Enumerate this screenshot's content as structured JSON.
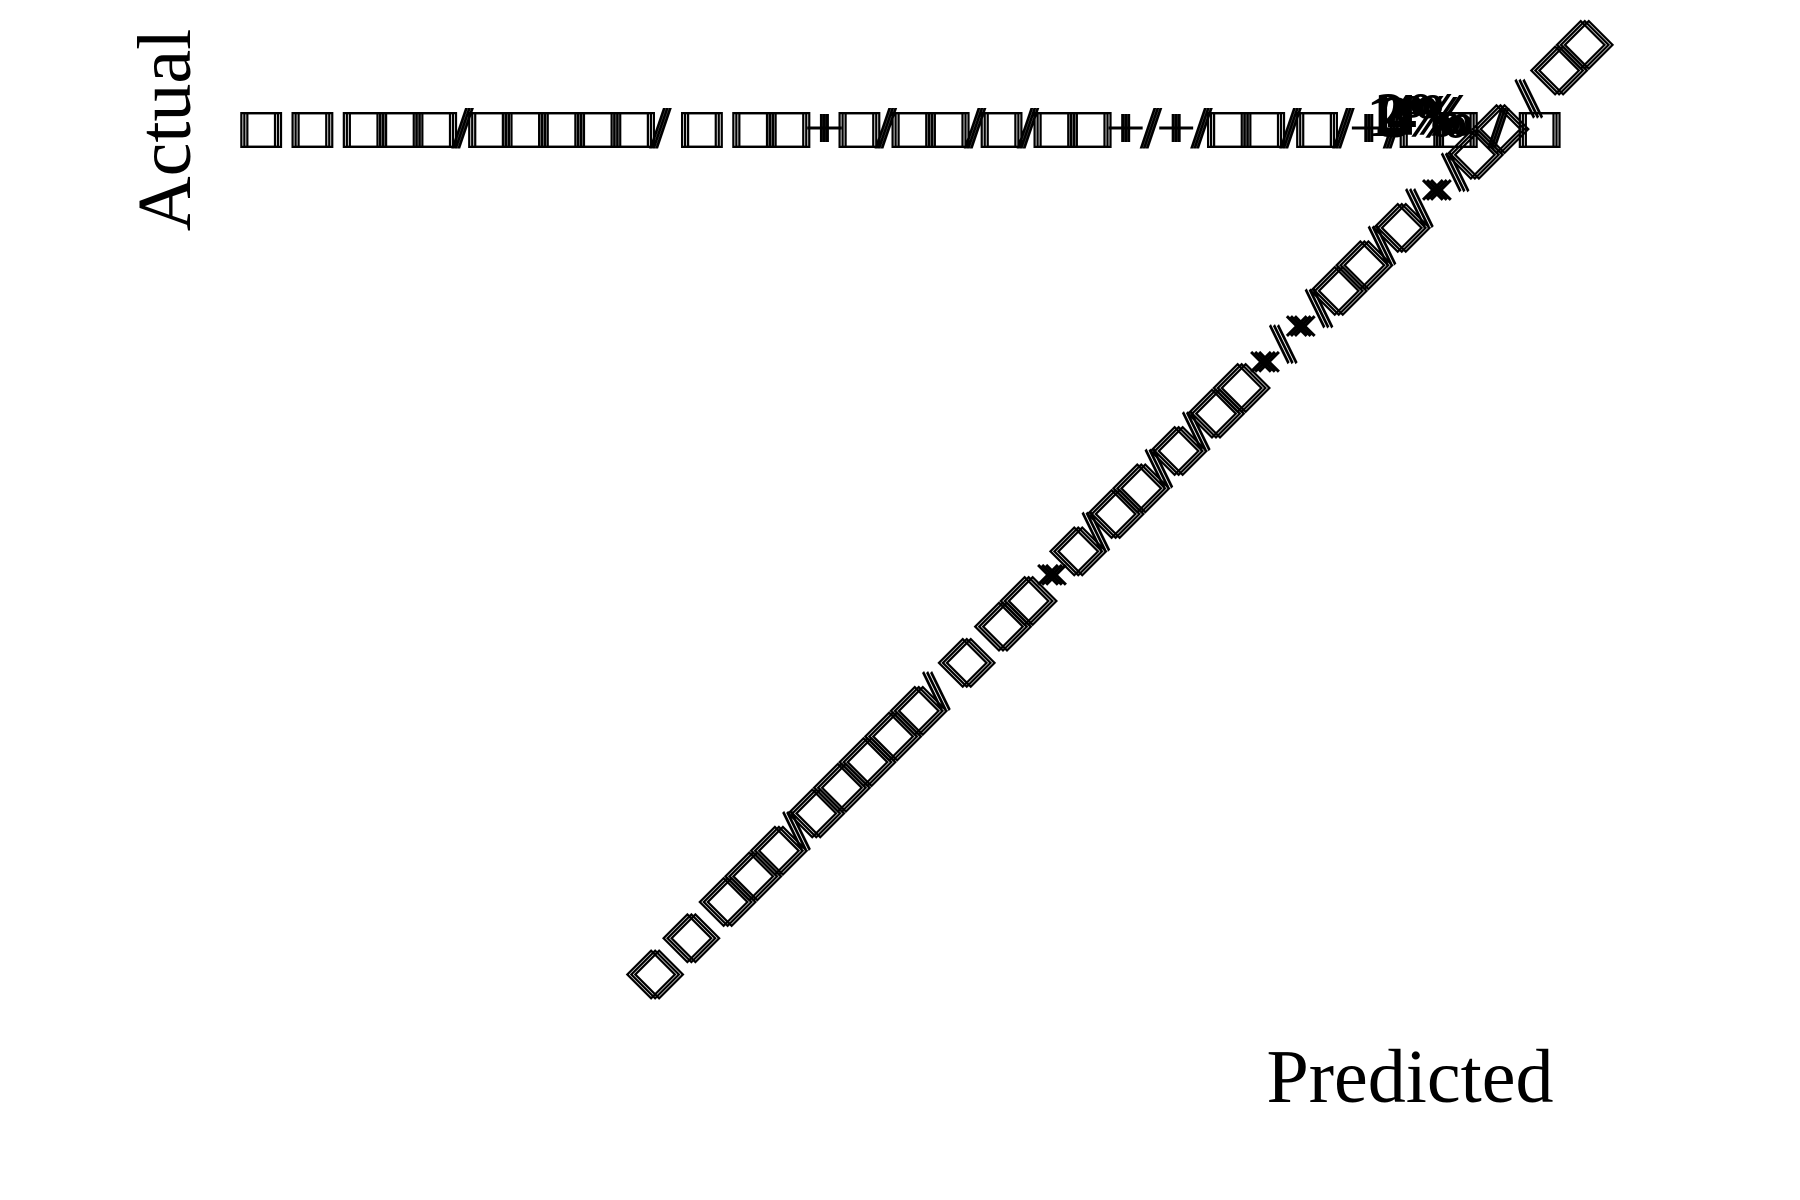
{
  "chart_data": {
    "type": "heatmap",
    "xlabel": "Predicted",
    "ylabel": "Actual",
    "x_tick_labels": [
      "□ □ □□□/□□□□□/ □ □□+□/□□/□/□□+/+/□□/□/+/□□ / □□",
      "□ □ □□□/□□□□□/ □ □□+□/□□/□/□□+/+/□□/□/+/□□ / □□",
      "□ □ □□□/□□□□□/ □ □□+□/□□/□/□□+/+/□□/□/+/□□ / □□"
    ],
    "y_tick_labels": [
      "□ □ □□□/□□□□□/ □ □□+□/□□/□/□□+/+/□□/□/+/□□ / □",
      "□ □ □□□/□□□□□/ □ □□+□/□□/□/□□+/+/□□/□/+/□□ / □",
      "□ □ □□□/□□□□□/ □ □□+□/□□/□/□□+/+/□□/□/+/□□ / □"
    ],
    "cell_labels": [
      "1%",
      "2%",
      "3%",
      "4%"
    ],
    "colorbar": false,
    "grid": false
  }
}
